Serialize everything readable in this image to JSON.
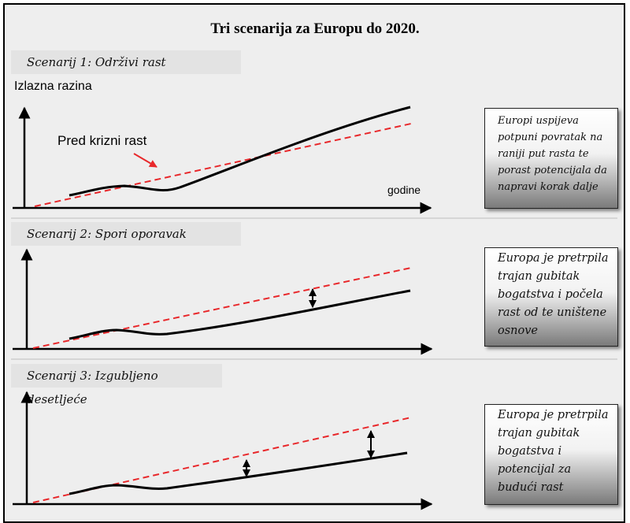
{
  "title": "Tri scenarija za Europu do 2020.",
  "y_axis_label": "Izlazna razina",
  "x_axis_label": "godine",
  "precrisis_label": "Pred krizni rast",
  "scenarios": [
    {
      "heading": "Scenarij 1: Održivi rast",
      "description": "Europi uspijeva potpuni povratak na raniji put rasta te porast potencijala da napravi korak dalje"
    },
    {
      "heading": "Scenarij 2: Spori oporavak",
      "description": "Europa je pretrpila trajan gubitak bogatstva i počela rast od te uništene osnove"
    },
    {
      "heading": "Scenarij 3: Izgubljeno desetljeće",
      "description": "Europa je pretrpila trajan gubitak bogatstva i potencijal za budući rast"
    }
  ],
  "colors": {
    "trend_line": "#e8282b",
    "output_line": "#000000",
    "annotation_arrow": "#e8282b"
  }
}
